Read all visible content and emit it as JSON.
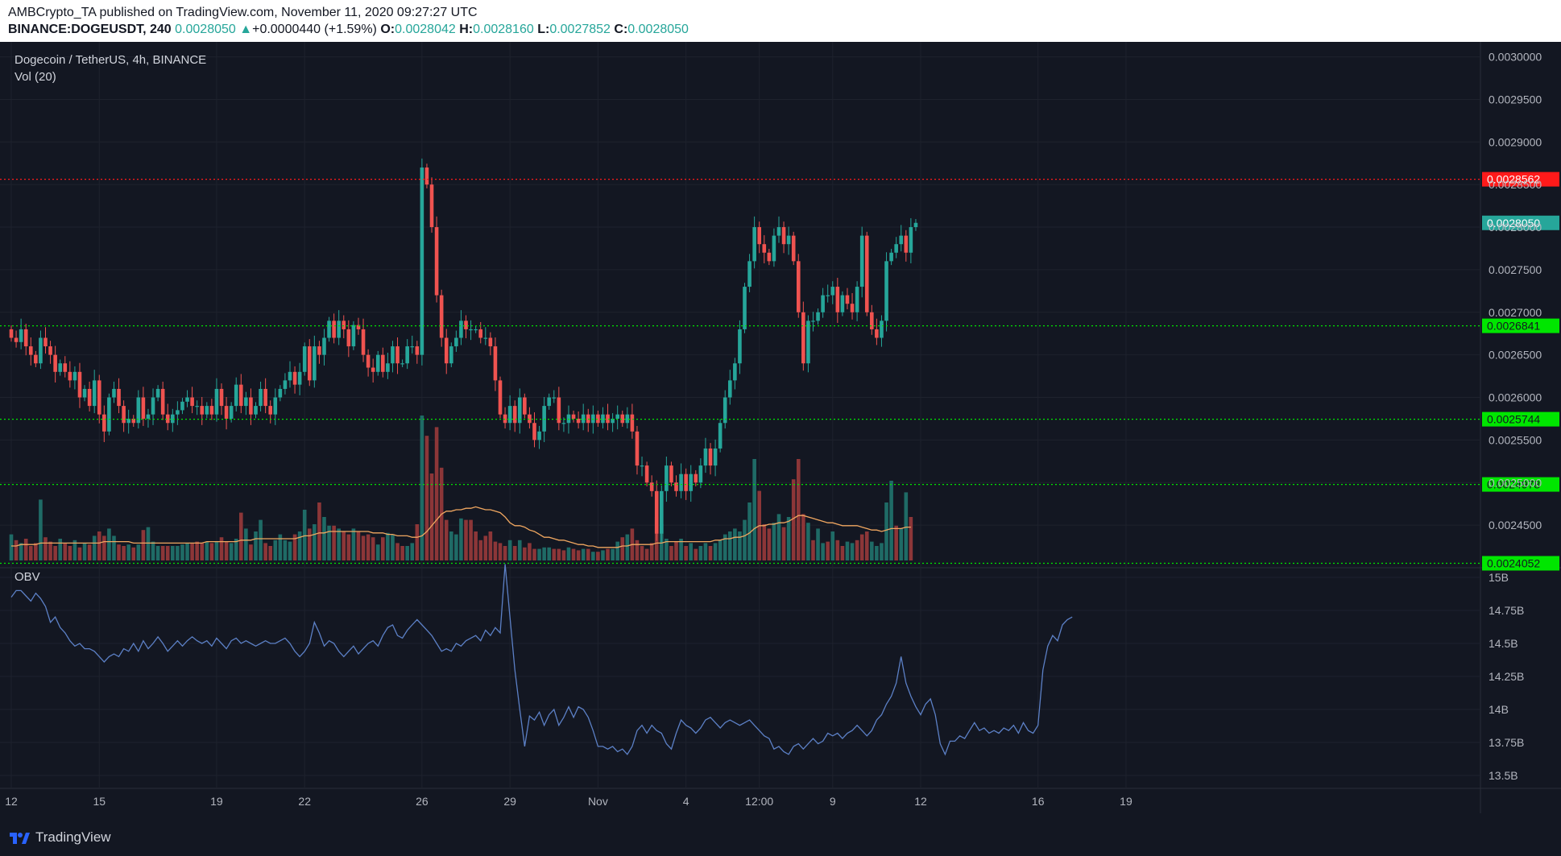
{
  "header": {
    "line1": "AMBCrypto_TA published on TradingView.com, November 11, 2020 09:27:27 UTC",
    "symbol": "BINANCE:DOGEUSDT, 240",
    "last": "0.0028050",
    "change": "+0.0000440 (+1.59%)",
    "o_label": "O:",
    "o_value": "0.0028042",
    "h_label": "H:",
    "h_value": "0.0028160",
    "l_label": "L:",
    "l_value": "0.0027852",
    "c_label": "C:",
    "c_value": "0.0028050"
  },
  "legend": {
    "pair": "Dogecoin / TetherUS, 4h, BINANCE",
    "vol": "Vol (20)",
    "obv": "OBV"
  },
  "footer": {
    "brand": "TradingView"
  },
  "colors": {
    "background": "#131722",
    "up": "#26a69a",
    "down": "#ef5350",
    "vol_up": "#1f6b66",
    "vol_down": "#8c3638",
    "vol_ma": "#f0a760",
    "obv": "#5c80c6",
    "support": "#00e600",
    "resistance": "#ff1a1a"
  },
  "chart_data": [
    {
      "type": "candlestick",
      "title": "Dogecoin / TetherUS, 4h, BINANCE",
      "ylim": [
        0.0024,
        0.00301
      ],
      "y_ticks": [
        "0.0030000",
        "0.0029500",
        "0.0029000",
        "0.0028500",
        "0.0028000",
        "0.0027500",
        "0.0027000",
        "0.0026500",
        "0.0026000",
        "0.0025500",
        "0.0025000",
        "0.0024500"
      ],
      "x_ticks": [
        {
          "label": "12",
          "bar": 0
        },
        {
          "label": "15",
          "bar": 18
        },
        {
          "label": "19",
          "bar": 42
        },
        {
          "label": "22",
          "bar": 60
        },
        {
          "label": "26",
          "bar": 84
        },
        {
          "label": "29",
          "bar": 102
        },
        {
          "label": "Nov",
          "bar": 120
        },
        {
          "label": "4",
          "bar": 138
        },
        {
          "label": "12:00",
          "bar": 153
        },
        {
          "label": "9",
          "bar": 168
        },
        {
          "label": "12",
          "bar": 186
        },
        {
          "label": "16",
          "bar": 210
        },
        {
          "label": "19",
          "bar": 228
        }
      ],
      "horizontal_levels": [
        {
          "value": 0.0028562,
          "label": "0.0028562",
          "style": "resistance"
        },
        {
          "value": 0.0026841,
          "label": "0.0026841",
          "style": "support"
        },
        {
          "value": 0.0025744,
          "label": "0.0025744",
          "style": "support"
        },
        {
          "value": 0.0024978,
          "label": "0.0024978",
          "style": "support"
        },
        {
          "value": 0.0024052,
          "label": "0.0024052",
          "style": "support"
        }
      ],
      "last_price": {
        "value": 0.002805,
        "label": "0.0028050"
      },
      "close": [
        0.00267,
        0.002665,
        0.00268,
        0.00266,
        0.00265,
        0.00264,
        0.00267,
        0.00266,
        0.00265,
        0.00263,
        0.00264,
        0.00263,
        0.00262,
        0.00263,
        0.0026,
        0.00261,
        0.00259,
        0.00262,
        0.00258,
        0.00256,
        0.0026,
        0.00261,
        0.00259,
        0.00257,
        0.002575,
        0.00257,
        0.0026,
        0.002575,
        0.00258,
        0.0026,
        0.00261,
        0.00258,
        0.00257,
        0.00258,
        0.002585,
        0.002595,
        0.0026,
        0.00259,
        0.00259,
        0.00258,
        0.00259,
        0.00258,
        0.00261,
        0.00259,
        0.002575,
        0.00259,
        0.002615,
        0.00259,
        0.0026,
        0.00258,
        0.00259,
        0.00261,
        0.00259,
        0.00258,
        0.0026,
        0.00261,
        0.00262,
        0.00263,
        0.002615,
        0.00263,
        0.00266,
        0.00262,
        0.00266,
        0.00265,
        0.00267,
        0.00269,
        0.00267,
        0.00269,
        0.00268,
        0.00266,
        0.002685,
        0.00268,
        0.00265,
        0.002635,
        0.00263,
        0.00265,
        0.00263,
        0.00264,
        0.00266,
        0.00264,
        0.00264,
        0.00266,
        0.00266,
        0.00265,
        0.00287,
        0.00285,
        0.0028,
        0.00272,
        0.00267,
        0.00264,
        0.00266,
        0.00267,
        0.00269,
        0.00268,
        0.00268,
        0.00268,
        0.00267,
        0.00267,
        0.00266,
        0.00262,
        0.00258,
        0.00257,
        0.00259,
        0.00257,
        0.0026,
        0.00258,
        0.00257,
        0.00255,
        0.00256,
        0.00259,
        0.0026,
        0.0026,
        0.00257,
        0.00257,
        0.00258,
        0.002575,
        0.00257,
        0.00258,
        0.00257,
        0.00258,
        0.00257,
        0.00258,
        0.00257,
        0.002575,
        0.00258,
        0.00257,
        0.00258,
        0.00256,
        0.00252,
        0.00252,
        0.0025,
        0.00249,
        0.00244,
        0.00249,
        0.00252,
        0.0025,
        0.00249,
        0.00251,
        0.00249,
        0.00251,
        0.0025,
        0.00252,
        0.00254,
        0.00252,
        0.00254,
        0.00257,
        0.0026,
        0.00262,
        0.00264,
        0.00268,
        0.00273,
        0.00276,
        0.0028,
        0.00278,
        0.00277,
        0.00276,
        0.00279,
        0.0028,
        0.00278,
        0.00279,
        0.00276,
        0.0027,
        0.00264,
        0.00269,
        0.00269,
        0.0027,
        0.00272,
        0.00272,
        0.00273,
        0.0027,
        0.00272,
        0.00271,
        0.0027,
        0.00273,
        0.00279,
        0.0027,
        0.00268,
        0.00267,
        0.00269,
        0.00276,
        0.00277,
        0.00278,
        0.00279,
        0.00277,
        0.0028,
        0.002805
      ]
    },
    {
      "type": "bar",
      "title": "Vol (20)",
      "note": "relative volume 0-1 per bar with 20-period moving average",
      "values": [
        0.18,
        0.14,
        0.12,
        0.15,
        0.1,
        0.12,
        0.42,
        0.16,
        0.13,
        0.1,
        0.15,
        0.12,
        0.1,
        0.14,
        0.09,
        0.12,
        0.11,
        0.17,
        0.2,
        0.17,
        0.22,
        0.17,
        0.11,
        0.1,
        0.11,
        0.09,
        0.11,
        0.21,
        0.23,
        0.13,
        0.1,
        0.1,
        0.1,
        0.1,
        0.1,
        0.11,
        0.12,
        0.12,
        0.13,
        0.12,
        0.13,
        0.12,
        0.13,
        0.16,
        0.13,
        0.12,
        0.15,
        0.33,
        0.22,
        0.11,
        0.2,
        0.28,
        0.12,
        0.1,
        0.14,
        0.18,
        0.14,
        0.13,
        0.18,
        0.2,
        0.35,
        0.22,
        0.25,
        0.4,
        0.3,
        0.24,
        0.24,
        0.22,
        0.2,
        0.18,
        0.22,
        0.2,
        0.17,
        0.18,
        0.16,
        0.11,
        0.16,
        0.19,
        0.18,
        0.12,
        0.1,
        0.1,
        0.12,
        0.25,
        1.0,
        0.86,
        0.6,
        0.92,
        0.64,
        0.28,
        0.2,
        0.18,
        0.29,
        0.28,
        0.28,
        0.2,
        0.14,
        0.17,
        0.2,
        0.13,
        0.12,
        0.1,
        0.14,
        0.1,
        0.14,
        0.09,
        0.12,
        0.08,
        0.08,
        0.09,
        0.09,
        0.08,
        0.08,
        0.07,
        0.09,
        0.08,
        0.07,
        0.08,
        0.08,
        0.06,
        0.06,
        0.07,
        0.08,
        0.08,
        0.13,
        0.16,
        0.18,
        0.22,
        0.14,
        0.1,
        0.08,
        0.12,
        0.3,
        0.25,
        0.15,
        0.1,
        0.13,
        0.15,
        0.1,
        0.12,
        0.08,
        0.1,
        0.12,
        0.1,
        0.12,
        0.14,
        0.18,
        0.2,
        0.22,
        0.2,
        0.28,
        0.4,
        0.7,
        0.48,
        0.25,
        0.22,
        0.26,
        0.32,
        0.23,
        0.3,
        0.56,
        0.7,
        0.32,
        0.26,
        0.14,
        0.22,
        0.12,
        0.13,
        0.2,
        0.14,
        0.1,
        0.13,
        0.12,
        0.14,
        0.18,
        0.2,
        0.13,
        0.1,
        0.12,
        0.4,
        0.55,
        0.24,
        0.22,
        0.47,
        0.3
      ],
      "up": [
        1,
        0,
        1,
        0,
        0,
        0,
        1,
        0,
        0,
        0,
        1,
        0,
        0,
        1,
        0,
        1,
        0,
        1,
        0,
        0,
        1,
        1,
        0,
        0,
        1,
        0,
        1,
        0,
        1,
        1,
        1,
        0,
        0,
        1,
        1,
        1,
        1,
        0,
        0,
        0,
        1,
        0,
        1,
        0,
        0,
        1,
        1,
        0,
        1,
        0,
        1,
        1,
        0,
        0,
        1,
        1,
        1,
        1,
        0,
        1,
        1,
        0,
        1,
        0,
        1,
        1,
        0,
        1,
        0,
        0,
        1,
        0,
        0,
        0,
        0,
        1,
        0,
        1,
        1,
        0,
        0,
        1,
        1,
        0,
        1,
        0,
        0,
        0,
        0,
        0,
        1,
        1,
        1,
        0,
        0,
        0,
        0,
        0,
        0,
        0,
        0,
        0,
        1,
        0,
        1,
        0,
        0,
        0,
        1,
        1,
        1,
        0,
        0,
        0,
        1,
        0,
        0,
        1,
        0,
        1,
        0,
        1,
        0,
        1,
        1,
        0,
        1,
        0,
        0,
        0,
        0,
        0,
        0,
        1,
        1,
        0,
        0,
        1,
        0,
        1,
        0,
        1,
        1,
        0,
        1,
        1,
        1,
        1,
        1,
        1,
        1,
        1,
        1,
        0,
        0,
        0,
        1,
        1,
        0,
        1,
        0,
        0,
        0,
        1,
        0,
        1,
        1,
        0,
        1,
        0,
        0,
        1,
        1,
        0,
        0,
        0,
        1,
        1,
        1,
        1,
        1,
        0,
        1,
        1
      ],
      "ma": [
        0.1,
        0.1,
        0.11,
        0.11,
        0.11,
        0.11,
        0.12,
        0.12,
        0.12,
        0.12,
        0.12,
        0.12,
        0.12,
        0.12,
        0.12,
        0.12,
        0.12,
        0.12,
        0.12,
        0.13,
        0.13,
        0.13,
        0.13,
        0.13,
        0.13,
        0.12,
        0.12,
        0.12,
        0.12,
        0.12,
        0.12,
        0.12,
        0.12,
        0.12,
        0.12,
        0.12,
        0.12,
        0.12,
        0.12,
        0.12,
        0.13,
        0.13,
        0.13,
        0.13,
        0.13,
        0.13,
        0.13,
        0.14,
        0.14,
        0.14,
        0.15,
        0.15,
        0.15,
        0.15,
        0.15,
        0.15,
        0.15,
        0.15,
        0.15,
        0.16,
        0.17,
        0.17,
        0.18,
        0.19,
        0.19,
        0.2,
        0.2,
        0.2,
        0.2,
        0.2,
        0.2,
        0.2,
        0.2,
        0.2,
        0.19,
        0.19,
        0.19,
        0.18,
        0.18,
        0.17,
        0.17,
        0.17,
        0.16,
        0.16,
        0.17,
        0.2,
        0.24,
        0.28,
        0.32,
        0.34,
        0.34,
        0.35,
        0.35,
        0.36,
        0.36,
        0.37,
        0.36,
        0.35,
        0.35,
        0.34,
        0.33,
        0.3,
        0.26,
        0.24,
        0.24,
        0.23,
        0.21,
        0.2,
        0.18,
        0.16,
        0.16,
        0.15,
        0.14,
        0.14,
        0.13,
        0.12,
        0.11,
        0.11,
        0.1,
        0.1,
        0.09,
        0.09,
        0.09,
        0.09,
        0.09,
        0.1,
        0.1,
        0.11,
        0.11,
        0.11,
        0.11,
        0.11,
        0.12,
        0.12,
        0.13,
        0.13,
        0.13,
        0.13,
        0.13,
        0.13,
        0.13,
        0.13,
        0.13,
        0.13,
        0.14,
        0.14,
        0.15,
        0.15,
        0.16,
        0.16,
        0.17,
        0.19,
        0.22,
        0.24,
        0.24,
        0.25,
        0.25,
        0.26,
        0.26,
        0.27,
        0.29,
        0.31,
        0.31,
        0.3,
        0.29,
        0.28,
        0.27,
        0.26,
        0.26,
        0.25,
        0.24,
        0.24,
        0.24,
        0.24,
        0.23,
        0.22,
        0.21,
        0.21,
        0.2,
        0.21,
        0.22,
        0.22,
        0.22,
        0.23,
        0.23
      ]
    },
    {
      "type": "line",
      "title": "OBV",
      "ylim": [
        13.5,
        15.0
      ],
      "y_ticks": [
        "15B",
        "14.75B",
        "14.5B",
        "14.25B",
        "14B",
        "13.75B",
        "13.5B"
      ],
      "values": [
        14.85,
        14.9,
        14.9,
        14.86,
        14.82,
        14.88,
        14.84,
        14.78,
        14.66,
        14.7,
        14.62,
        14.58,
        14.52,
        14.48,
        14.5,
        14.46,
        14.46,
        14.44,
        14.4,
        14.36,
        14.4,
        14.42,
        14.4,
        14.46,
        14.44,
        14.5,
        14.44,
        14.52,
        14.46,
        14.5,
        14.55,
        14.5,
        14.44,
        14.48,
        14.52,
        14.48,
        14.52,
        14.55,
        14.52,
        14.5,
        14.52,
        14.48,
        14.54,
        14.5,
        14.46,
        14.52,
        14.54,
        14.5,
        14.52,
        14.5,
        14.48,
        14.5,
        14.52,
        14.5,
        14.5,
        14.52,
        14.54,
        14.5,
        14.44,
        14.4,
        14.44,
        14.5,
        14.66,
        14.58,
        14.48,
        14.52,
        14.5,
        14.44,
        14.4,
        14.44,
        14.48,
        14.42,
        14.46,
        14.5,
        14.52,
        14.48,
        14.56,
        14.62,
        14.64,
        14.56,
        14.54,
        14.6,
        14.64,
        14.68,
        14.64,
        14.6,
        14.56,
        14.5,
        14.44,
        14.46,
        14.44,
        14.5,
        14.48,
        14.52,
        14.54,
        14.56,
        14.52,
        14.6,
        14.56,
        14.62,
        14.58,
        15.1,
        14.7,
        14.3,
        14.0,
        13.72,
        13.95,
        13.92,
        13.98,
        13.88,
        13.96,
        14.0,
        13.88,
        13.94,
        14.02,
        13.94,
        14.02,
        14.0,
        13.94,
        13.84,
        13.72,
        13.72,
        13.7,
        13.72,
        13.68,
        13.7,
        13.66,
        13.72,
        13.84,
        13.88,
        13.82,
        13.88,
        13.84,
        13.82,
        13.74,
        13.7,
        13.82,
        13.92,
        13.88,
        13.86,
        13.82,
        13.86,
        13.92,
        13.94,
        13.9,
        13.86,
        13.9,
        13.92,
        13.9,
        13.88,
        13.9,
        13.92,
        13.88,
        13.84,
        13.8,
        13.78,
        13.7,
        13.72,
        13.68,
        13.66,
        13.72,
        13.74,
        13.7,
        13.74,
        13.78,
        13.74,
        13.76,
        13.82,
        13.8,
        13.82,
        13.78,
        13.82,
        13.84,
        13.88,
        13.84,
        13.8,
        13.84,
        13.92,
        13.96,
        14.04,
        14.1,
        14.2,
        14.4,
        14.2,
        14.1,
        14.02,
        13.96,
        14.04,
        14.08,
        13.96,
        13.74,
        13.66,
        13.76,
        13.76,
        13.8,
        13.78,
        13.84,
        13.9,
        13.84,
        13.86,
        13.82,
        13.84,
        13.82,
        13.86,
        13.84,
        13.88,
        13.82,
        13.9,
        13.84,
        13.82,
        13.88,
        14.3,
        14.48,
        14.56,
        14.52,
        14.64,
        14.68,
        14.7
      ]
    }
  ]
}
